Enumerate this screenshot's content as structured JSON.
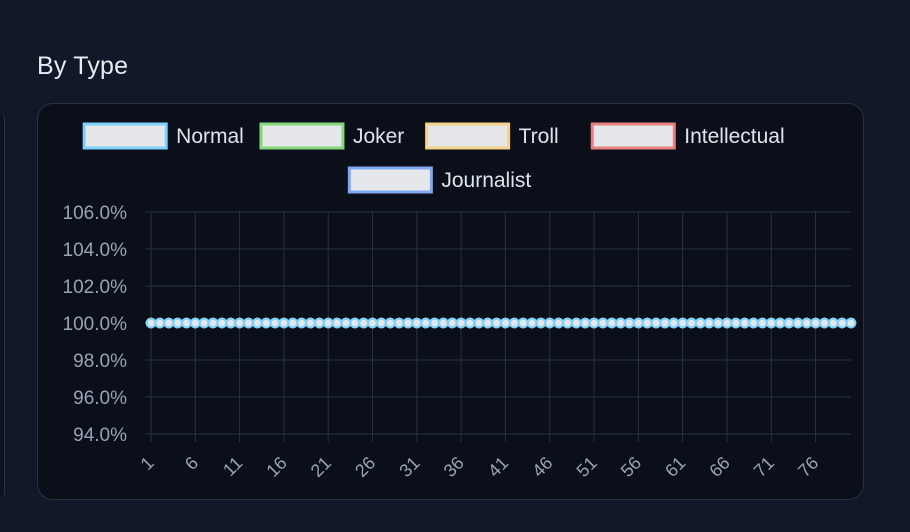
{
  "section": {
    "title": "By Type"
  },
  "colors": {
    "background": "#111827",
    "card": "#0a0f1a",
    "grid": "#283142",
    "tick_text": "#9aa3b5",
    "legend_text": "#dfe4ec",
    "legend_fill": "#e5e7eb"
  },
  "chart_data": {
    "type": "line",
    "title": "",
    "xlabel": "",
    "ylabel": "",
    "x": [
      1,
      2,
      3,
      4,
      5,
      6,
      7,
      8,
      9,
      10,
      11,
      12,
      13,
      14,
      15,
      16,
      17,
      18,
      19,
      20,
      21,
      22,
      23,
      24,
      25,
      26,
      27,
      28,
      29,
      30,
      31,
      32,
      33,
      34,
      35,
      36,
      37,
      38,
      39,
      40,
      41,
      42,
      43,
      44,
      45,
      46,
      47,
      48,
      49,
      50,
      51,
      52,
      53,
      54,
      55,
      56,
      57,
      58,
      59,
      60,
      61,
      62,
      63,
      64,
      65,
      66,
      67,
      68,
      69,
      70,
      71,
      72,
      73,
      74,
      75,
      76,
      77,
      78,
      79,
      80
    ],
    "x_tick_labels": [
      "1",
      "6",
      "11",
      "16",
      "21",
      "26",
      "31",
      "36",
      "41",
      "46",
      "51",
      "56",
      "61",
      "66",
      "71",
      "76"
    ],
    "y_tick_labels": [
      "106.0%",
      "104.0%",
      "102.0%",
      "100.0%",
      "98.0%",
      "96.0%",
      "94.0%"
    ],
    "ylim": [
      94,
      106
    ],
    "y_unit": "%",
    "grid": true,
    "legend_position": "top",
    "series": [
      {
        "name": "Normal",
        "color": "#7dd3fc",
        "value": 100
      },
      {
        "name": "Joker",
        "color": "#86d67a",
        "value": 100
      },
      {
        "name": "Troll",
        "color": "#f6d28b",
        "value": 100
      },
      {
        "name": "Intellectual",
        "color": "#e88080",
        "value": 100
      },
      {
        "name": "Journalist",
        "color": "#7fa8f0",
        "value": 100
      }
    ]
  }
}
